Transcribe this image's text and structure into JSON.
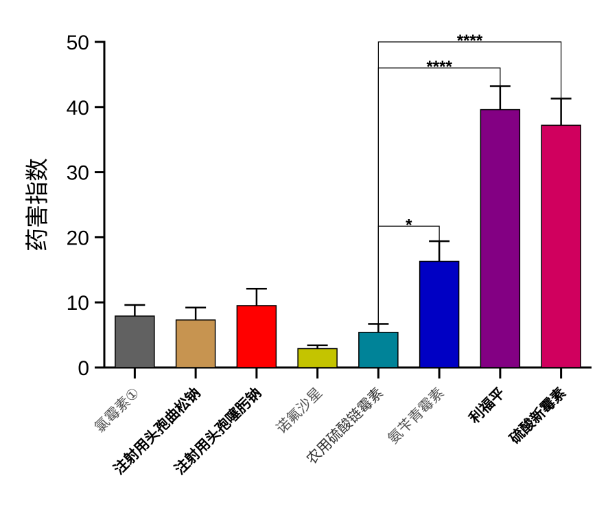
{
  "chart_data": {
    "type": "bar",
    "title": "",
    "xlabel": "",
    "ylabel": "药害指数",
    "ylim": [
      0,
      50
    ],
    "yticks": [
      0,
      10,
      20,
      30,
      40,
      50
    ],
    "grid": false,
    "categories": [
      "氯霉素①",
      "注射用头孢曲松钠",
      "注射用头孢噻肟钠",
      "诺氟沙星",
      "农用硫酸链霉素",
      "氨苄青霉素",
      "利福平",
      "硫酸新霉素"
    ],
    "category_label_weights": [
      "normal",
      "bold",
      "bold",
      "normal",
      "normal",
      "normal",
      "bold",
      "bold"
    ],
    "category_label_colors": [
      "#555555",
      "#000000",
      "#000000",
      "#555555",
      "#333333",
      "#555555",
      "#000000",
      "#000000"
    ],
    "values": [
      7.9,
      7.3,
      9.5,
      2.9,
      5.4,
      16.3,
      39.6,
      37.2
    ],
    "errors": [
      1.7,
      1.9,
      2.6,
      0.5,
      1.3,
      3.1,
      3.6,
      4.1
    ],
    "colors": [
      "#616161",
      "#C79450",
      "#FF0000",
      "#C4C400",
      "#008398",
      "#0000C4",
      "#830083",
      "#D0005E"
    ],
    "significance": [
      {
        "from": 4,
        "to": 5,
        "label": "*",
        "y": 21.7
      },
      {
        "from": 4,
        "to": 6,
        "label": "****",
        "y": 46.0
      },
      {
        "from": 4,
        "to": 7,
        "label": "****",
        "y": 50.0
      }
    ]
  }
}
